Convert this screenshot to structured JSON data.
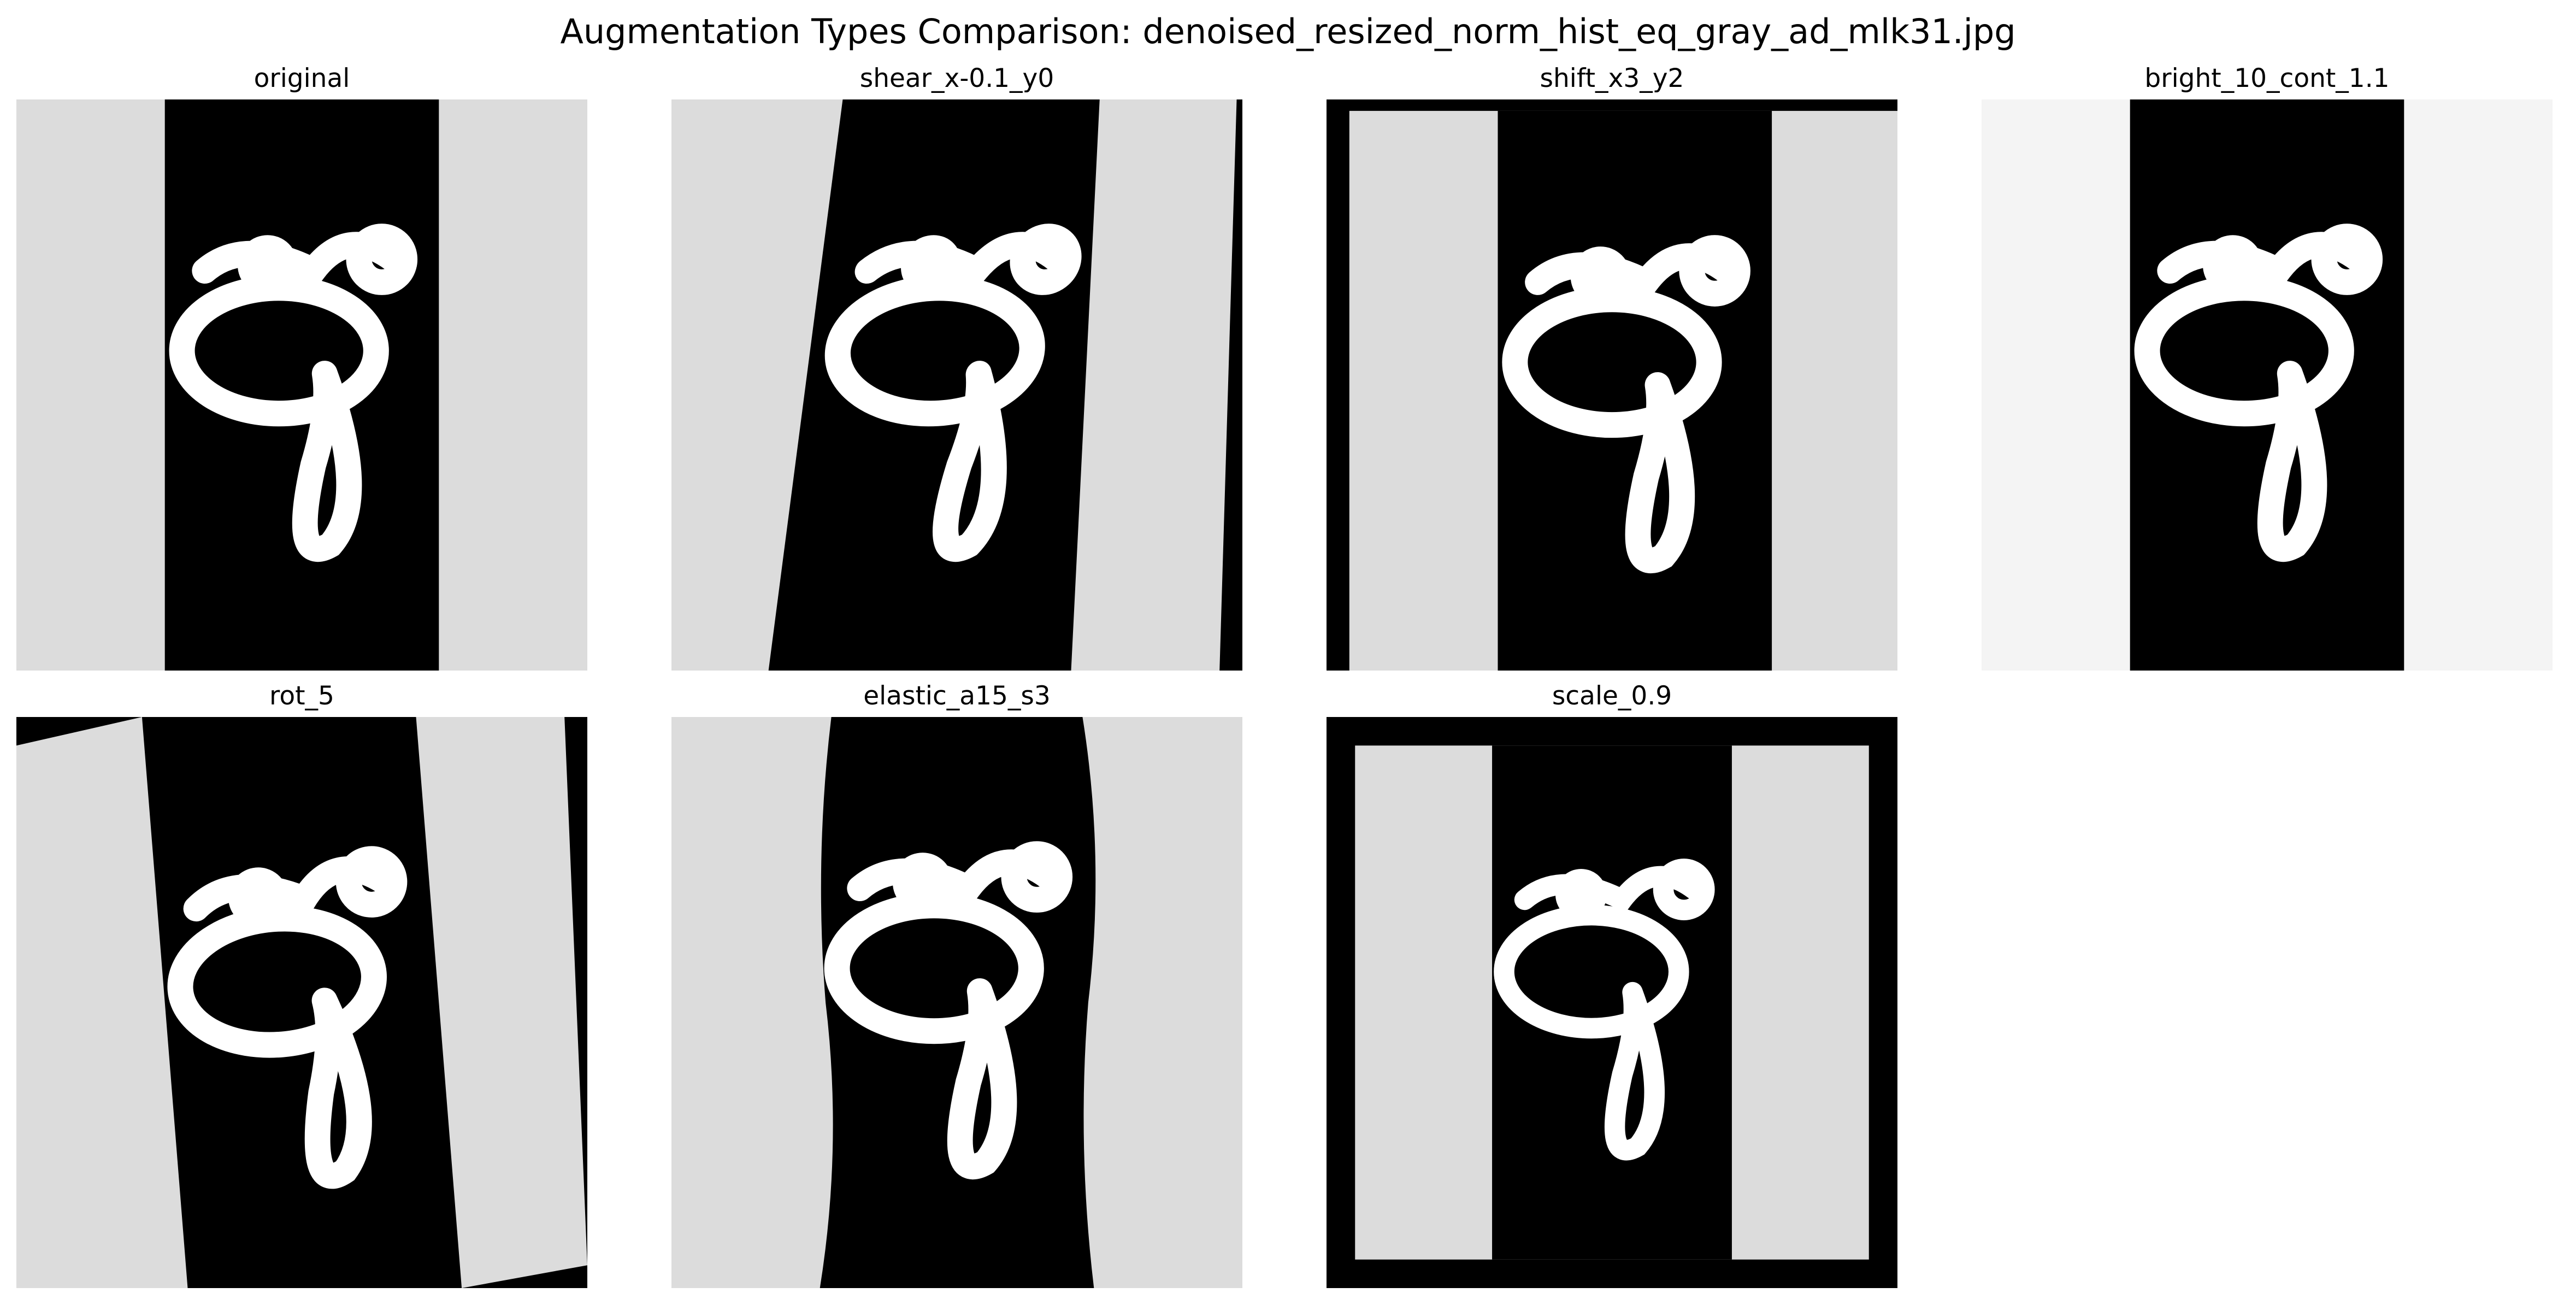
{
  "figure": {
    "title": "Augmentation Types Comparison: denoised_resized_norm_hist_eq_gray_ad_mlk31.jpg"
  },
  "panels": [
    {
      "id": "original",
      "title": "original"
    },
    {
      "id": "shear",
      "title": "shear_x-0.1_y0"
    },
    {
      "id": "shift",
      "title": "shift_x3_y2"
    },
    {
      "id": "bright",
      "title": "bright_10_cont_1.1"
    },
    {
      "id": "rot",
      "title": "rot_5"
    },
    {
      "id": "elastic",
      "title": "elastic_a15_s3"
    },
    {
      "id": "scale",
      "title": "scale_0.9"
    }
  ],
  "colors": {
    "light_stripe": "#dcdcdc",
    "brightened_stripe": "#f4f4f4",
    "dark_band": "#000000",
    "glyph": "#ffffff"
  }
}
